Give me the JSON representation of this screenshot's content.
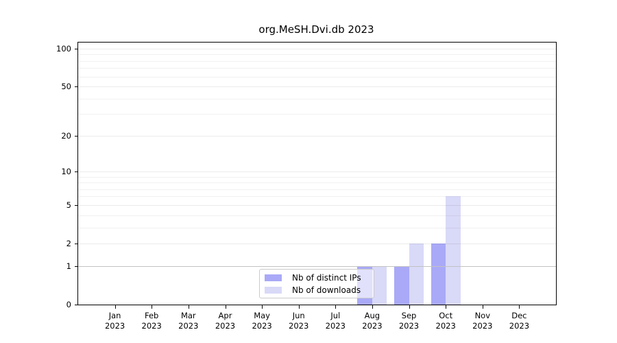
{
  "chart_data": {
    "type": "bar",
    "title": "org.MeSH.Dvi.db 2023",
    "x_tick_year": "2023",
    "x_tick_months": [
      "Jan",
      "Feb",
      "Mar",
      "Apr",
      "May",
      "Jun",
      "Jul",
      "Aug",
      "Sep",
      "Oct",
      "Nov",
      "Dec"
    ],
    "series": [
      {
        "name": "Nb of distinct IPs",
        "color": "#a9a9f7",
        "values": [
          0,
          0,
          0,
          0,
          0,
          0,
          0,
          1,
          1,
          2,
          0,
          0
        ]
      },
      {
        "name": "Nb of downloads",
        "color": "#d9d9f8",
        "values": [
          0,
          0,
          0,
          0,
          0,
          0,
          0,
          1,
          2,
          6,
          0,
          0
        ]
      }
    ],
    "y_scale": "log10(value+1)",
    "y_ticks": [
      0,
      1,
      2,
      5,
      10,
      20,
      50,
      100
    ],
    "y_minor_gridlines": [
      1,
      2,
      3,
      4,
      5,
      6,
      7,
      8,
      9,
      10,
      20,
      30,
      40,
      50,
      60,
      70,
      80,
      90,
      100
    ],
    "ylim": [
      0,
      112
    ],
    "grid": true,
    "legend_position": "lower-center",
    "colors": {
      "axis_border": "#000000",
      "gridline_minor": "rgba(0,0,0,0.055)",
      "gridline_major": "rgba(0,0,0,0.08)",
      "gridline_unit": "#c2c2c2",
      "legend_border": "#cbcbcb",
      "text": "#000000"
    }
  }
}
